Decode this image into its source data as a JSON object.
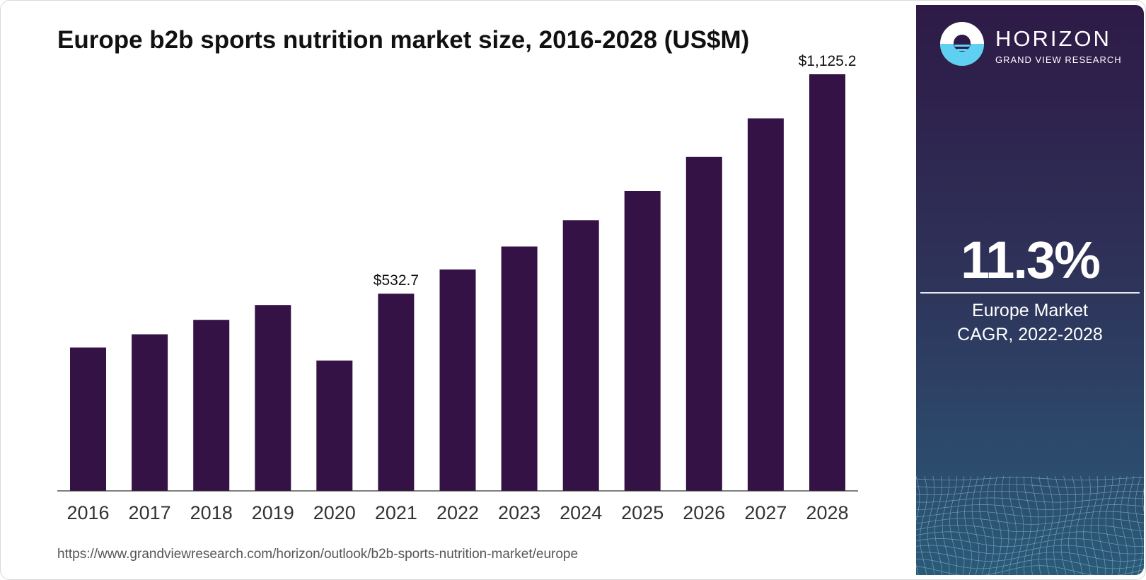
{
  "title": "Europe b2b sports nutrition market size, 2016-2028 (US$M)",
  "source_url": "https://www.grandviewresearch.com/horizon/outlook/b2b-sports-nutrition-market/europe",
  "brand": {
    "name": "HORIZON",
    "subtitle": "GRAND VIEW RESEARCH"
  },
  "side_panel": {
    "cagr_value": "11.3%",
    "label_line1": "Europe Market",
    "label_line2": "CAGR, 2022-2028"
  },
  "colors": {
    "bar": "#351245",
    "panel_top": "#2e1a47",
    "panel_bottom": "#2b5a78",
    "logo_accent": "#5fd0f2"
  },
  "chart_data": {
    "type": "bar",
    "categories": [
      "2016",
      "2017",
      "2018",
      "2019",
      "2020",
      "2021",
      "2022",
      "2023",
      "2024",
      "2025",
      "2026",
      "2027",
      "2028"
    ],
    "values": [
      387,
      423,
      462,
      502,
      352,
      532.7,
      598,
      660,
      731,
      810,
      902,
      1006,
      1125.2
    ],
    "data_labels": [
      {
        "category": "2021",
        "text": "$532.7"
      },
      {
        "category": "2028",
        "text": "$1,125.2"
      }
    ],
    "ylim": [
      0,
      1125.2
    ],
    "xlabel": "",
    "ylabel": "",
    "grid": false,
    "legend": "none"
  }
}
